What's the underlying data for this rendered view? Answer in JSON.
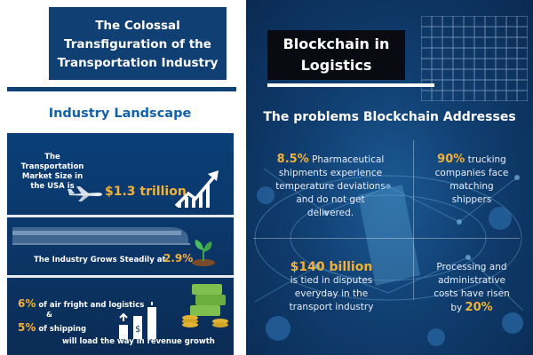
{
  "left": {
    "title_lines": [
      "The Colossal",
      "Transfiguration of the",
      "Transportation Industry"
    ],
    "section_heading": "Industry Landscape",
    "market": {
      "label_lines": [
        "The",
        "Transportation",
        "Market Size in",
        "the USA is"
      ],
      "value": "$1.3 trillion"
    },
    "growth": {
      "label": "The Industry Grows Steadily at",
      "value": "2.9%"
    },
    "shares": {
      "air_pct": "6%",
      "air_text": "of air fright and logistics",
      "amp": "&",
      "ship_pct": "5%",
      "ship_text": "of shipping",
      "lead_text": "will load the way in revenue growth"
    }
  },
  "right": {
    "title_lines": [
      "Blockchain in",
      "Logistics"
    ],
    "heading": "The problems Blockchain Addresses",
    "stats": [
      {
        "highlight": "8.5%",
        "lines": [
          "Pharmaceutical",
          "shipments experience",
          "temperature deviations",
          "and do not get",
          "delivered."
        ]
      },
      {
        "highlight": "90%",
        "lines": [
          "trucking",
          "companies face",
          "matching",
          "shippers"
        ]
      },
      {
        "highlight": "$140 billion",
        "lines": [
          "is tied in disputes",
          "everyday in the",
          "transport industry"
        ]
      },
      {
        "lines": [
          "Processing and",
          "administrative",
          "costs have risen"
        ],
        "prefix": "by",
        "highlight": "20%"
      }
    ]
  },
  "colors": {
    "navy": "#0f3f73",
    "accent": "#f2b23a",
    "heading_blue": "#1461a8"
  },
  "icons": [
    "airplane-icon",
    "growth-arrow-icon",
    "train-icon",
    "plant-icon",
    "money-stack-icon",
    "bar-chart-icon",
    "grid-decoration",
    "network-decoration"
  ]
}
